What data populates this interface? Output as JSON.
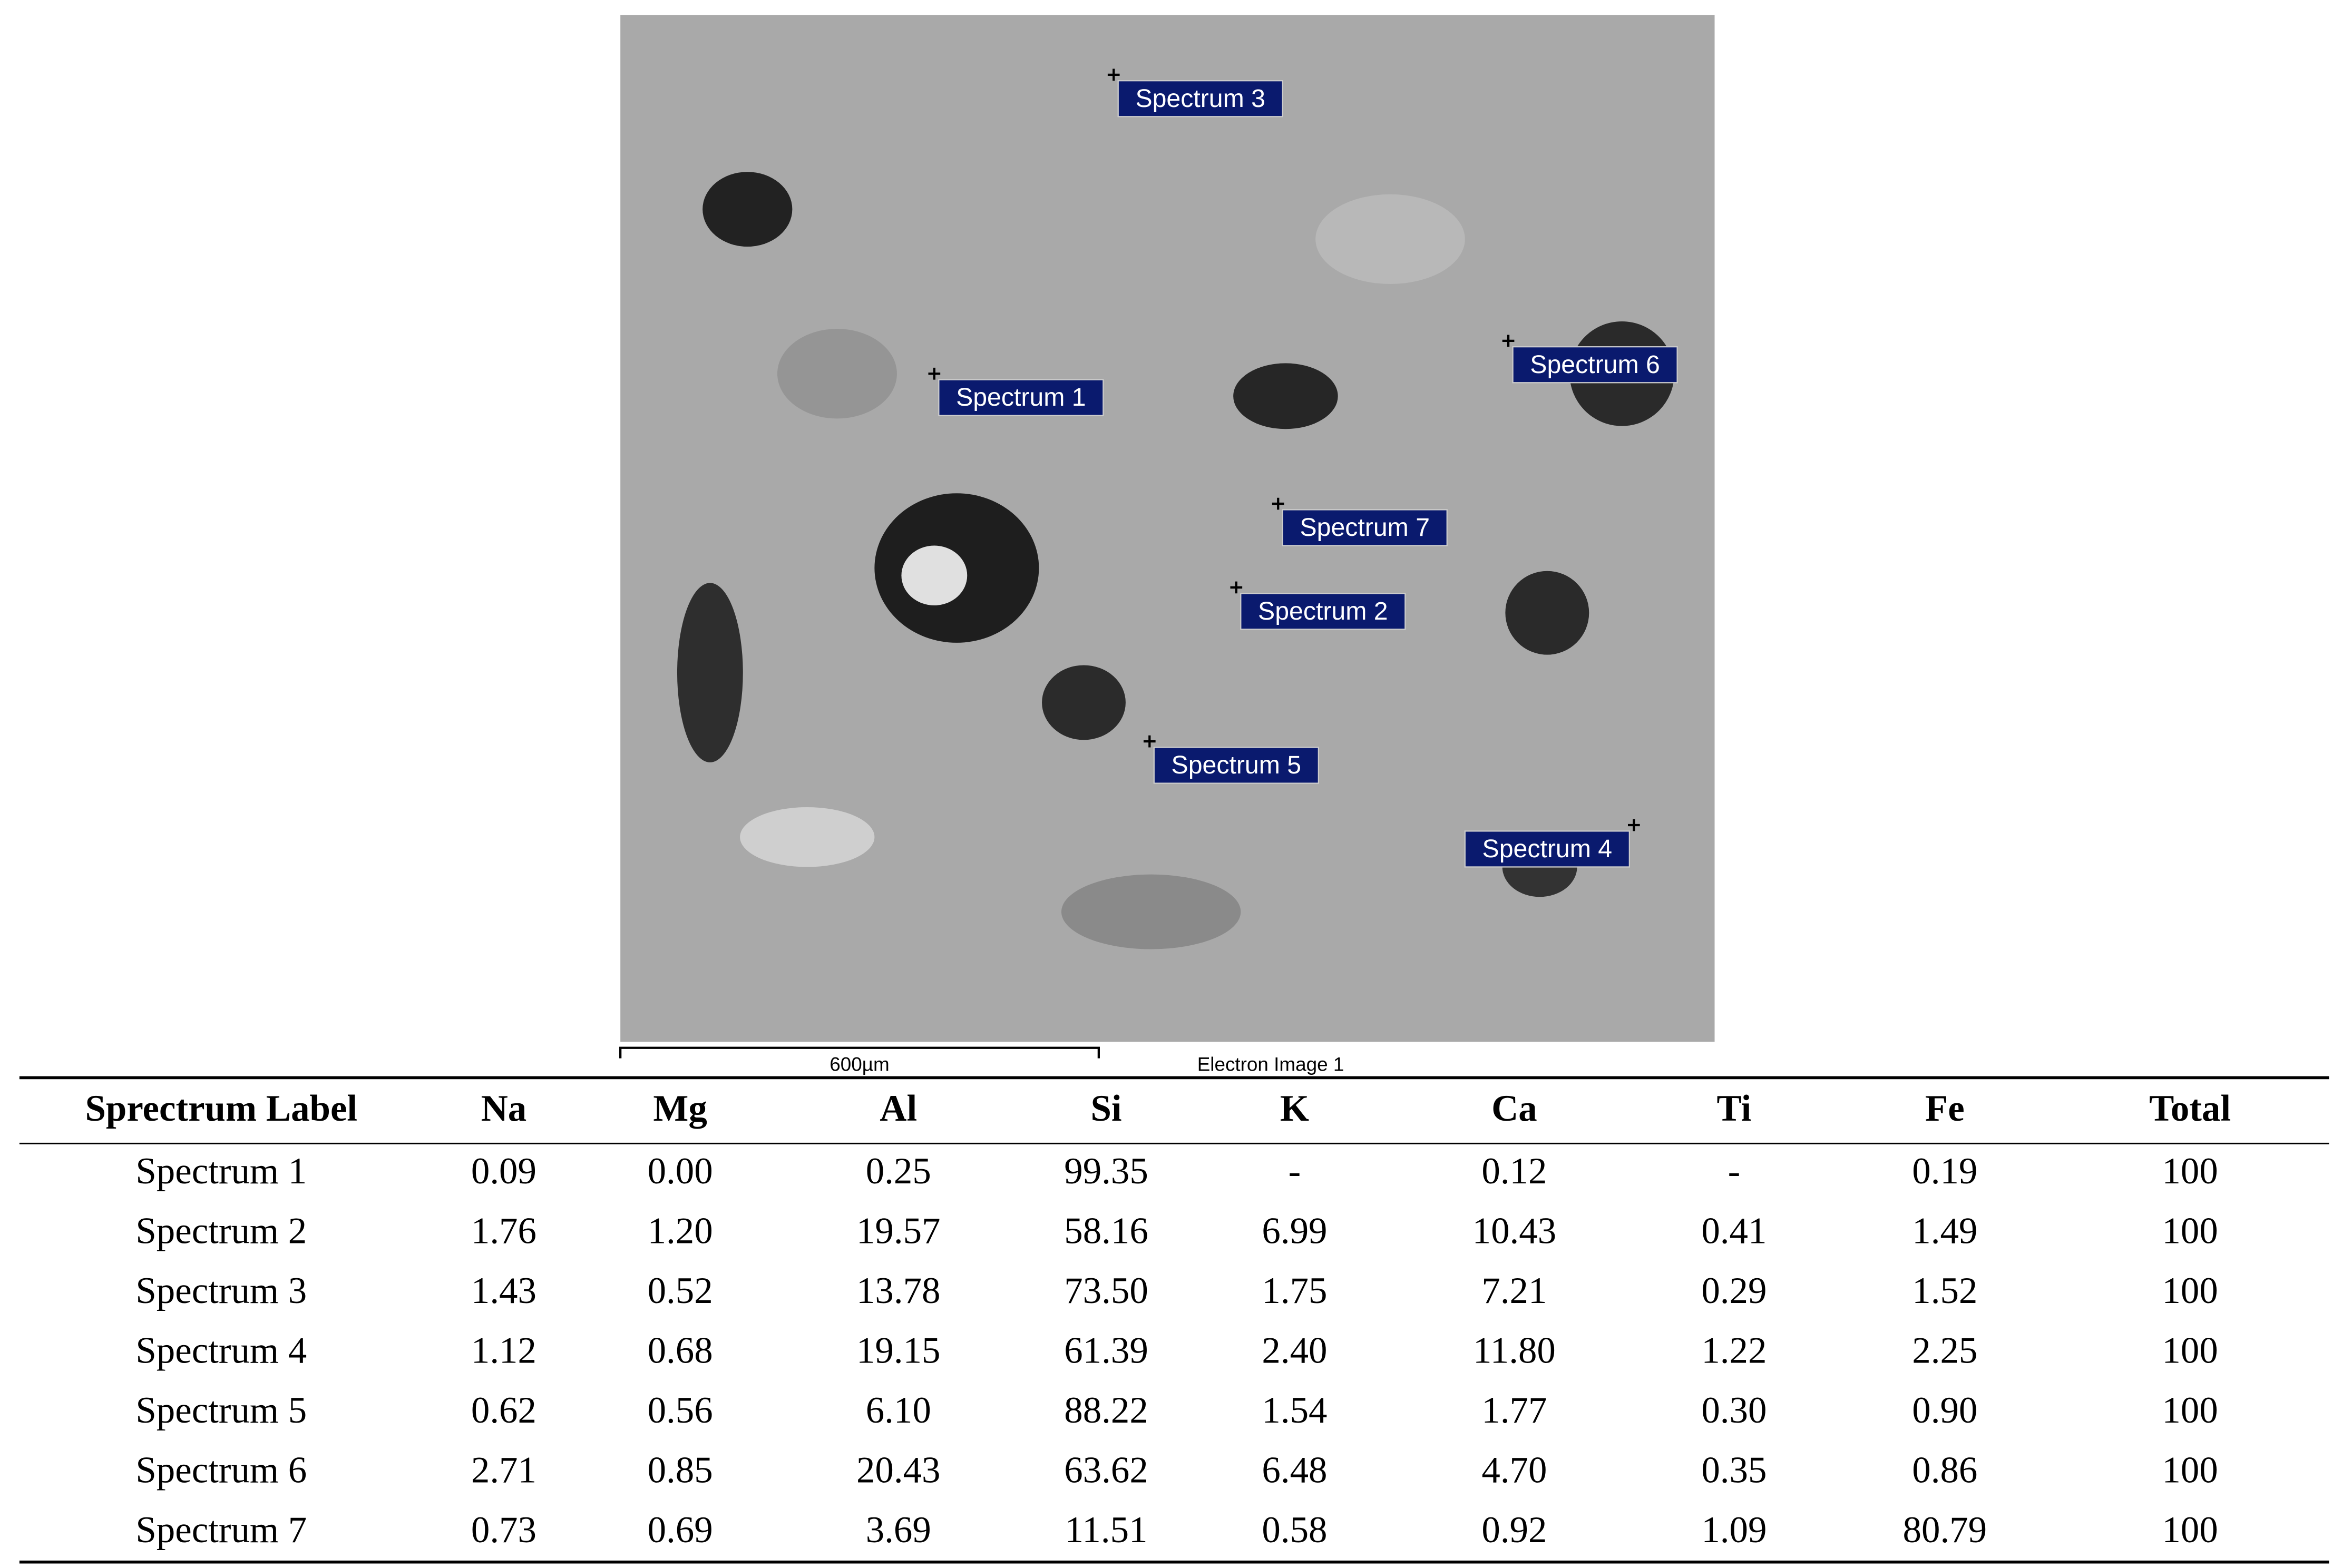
{
  "image": {
    "labels": [
      "Spectrum 1",
      "Spectrum 2",
      "Spectrum 3",
      "Spectrum 4",
      "Spectrum 5",
      "Spectrum 6",
      "Spectrum 7"
    ],
    "scale_bar": "600µm",
    "caption": "Electron Image 1"
  },
  "table": {
    "header": [
      "Sprectrum Label",
      "Na",
      "Mg",
      "Al",
      "Si",
      "K",
      "Ca",
      "Ti",
      "Fe",
      "Total"
    ],
    "rows": [
      [
        "Spectrum 1",
        "0.09",
        "0.00",
        "0.25",
        "99.35",
        "-",
        "0.12",
        "-",
        "0.19",
        "100"
      ],
      [
        "Spectrum 2",
        "1.76",
        "1.20",
        "19.57",
        "58.16",
        "6.99",
        "10.43",
        "0.41",
        "1.49",
        "100"
      ],
      [
        "Spectrum 3",
        "1.43",
        "0.52",
        "13.78",
        "73.50",
        "1.75",
        "7.21",
        "0.29",
        "1.52",
        "100"
      ],
      [
        "Spectrum 4",
        "1.12",
        "0.68",
        "19.15",
        "61.39",
        "2.40",
        "11.80",
        "1.22",
        "2.25",
        "100"
      ],
      [
        "Spectrum 5",
        "0.62",
        "0.56",
        "6.10",
        "88.22",
        "1.54",
        "1.77",
        "0.30",
        "0.90",
        "100"
      ],
      [
        "Spectrum 6",
        "2.71",
        "0.85",
        "20.43",
        "63.62",
        "6.48",
        "4.70",
        "0.35",
        "0.86",
        "100"
      ],
      [
        "Spectrum 7",
        "0.73",
        "0.69",
        "3.69",
        "11.51",
        "0.58",
        "0.92",
        "1.09",
        "80.79",
        "100"
      ]
    ]
  }
}
